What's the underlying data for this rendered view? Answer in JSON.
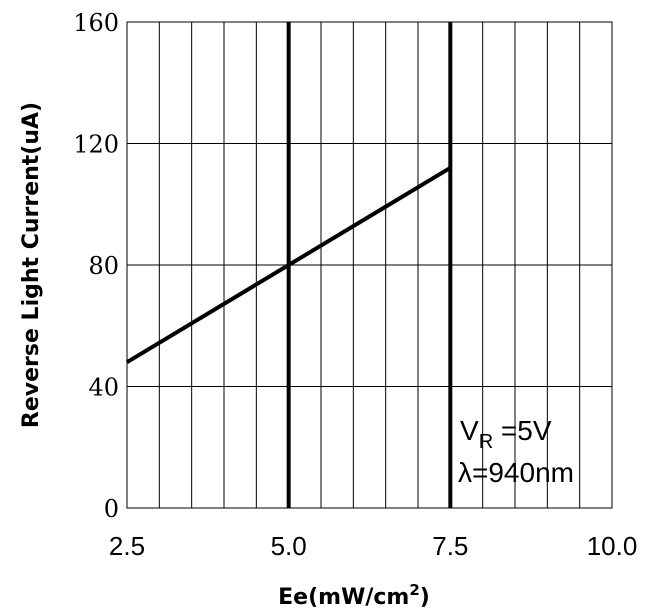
{
  "chart_data": {
    "type": "line",
    "title": "",
    "xlabel": "Ee(mW/cm",
    "xlabel_sup": "2",
    "xlabel_end": ")",
    "ylabel": "Reverse Light Current(uA)",
    "xlim": [
      2.5,
      10.0
    ],
    "ylim": [
      0,
      160
    ],
    "x_ticks": [
      2.5,
      5.0,
      7.5,
      10.0
    ],
    "x_tick_labels": [
      "2.5",
      "5.0",
      "7.5",
      "10.0"
    ],
    "y_ticks": [
      0,
      40,
      80,
      120,
      160
    ],
    "y_tick_labels": [
      "0",
      "40",
      "80",
      "120",
      "160"
    ],
    "x_minor_step": 0.5,
    "emphasized_vlines": [
      5.0,
      7.5
    ],
    "grid": true,
    "series": [
      {
        "x": [
          2.5,
          5.0,
          7.5
        ],
        "y": [
          48,
          80,
          112
        ]
      }
    ],
    "annotation": {
      "vr_main": "V",
      "vr_sub": "R",
      "vr_value": " =5V",
      "lambda": "λ=940nm"
    },
    "colors": {
      "line": "#000000",
      "grid": "#000000",
      "background": "#ffffff"
    }
  }
}
